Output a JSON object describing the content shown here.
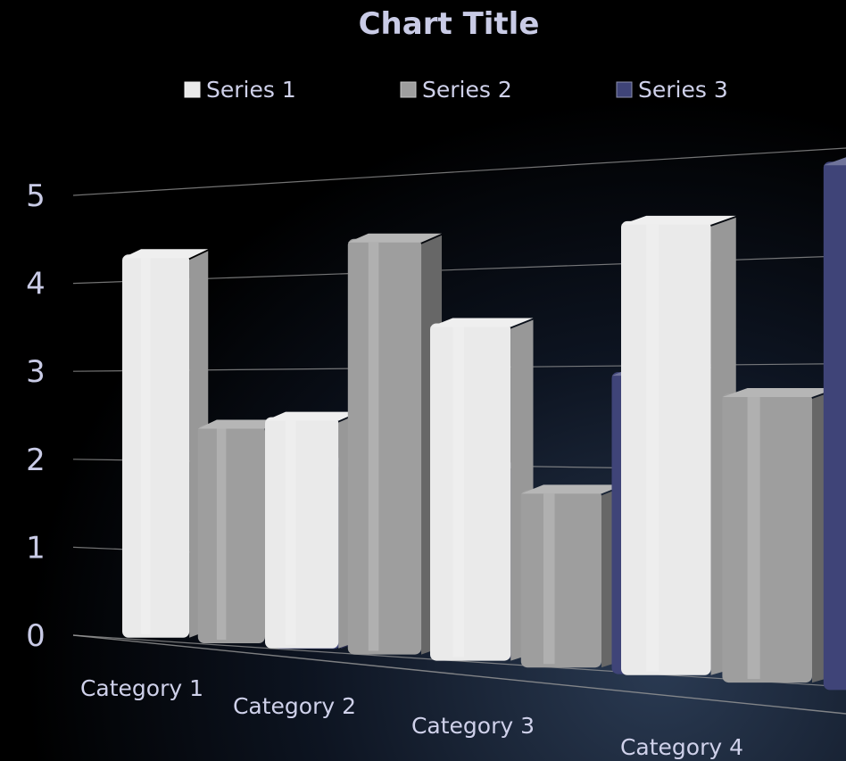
{
  "chart_data": {
    "type": "bar",
    "title": "Chart Title",
    "categories": [
      "Category 1",
      "Category 2",
      "Category 3",
      "Category 4"
    ],
    "series": [
      {
        "name": "Series 1",
        "values": [
          4.3,
          2.5,
          3.5,
          4.5
        ],
        "color": "#eaeaea"
      },
      {
        "name": "Series 2",
        "values": [
          2.4,
          4.4,
          1.8,
          2.8
        ],
        "color": "#9e9e9e"
      },
      {
        "name": "Series 3",
        "values": [
          2.0,
          2.0,
          3.0,
          5.0
        ],
        "color": "#3f4478"
      }
    ],
    "yticks": [
      "0",
      "1",
      "2",
      "3",
      "4",
      "5"
    ],
    "ylim": [
      0,
      5
    ],
    "grid": true,
    "legend_position": "top",
    "style": "3d"
  },
  "colors": {
    "background": "#000000",
    "backdrop": "#1a2436",
    "text": "#c9cbe6",
    "gridline": "#9a9a9a"
  }
}
